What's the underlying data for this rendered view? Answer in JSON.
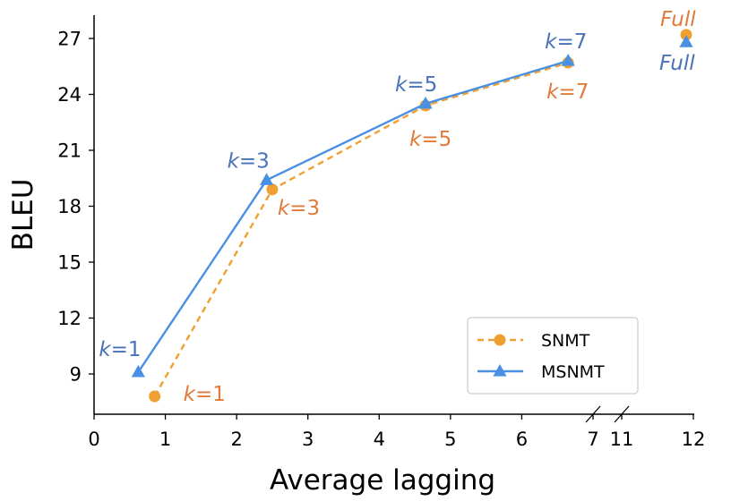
{
  "chart_data": {
    "type": "line",
    "title": "",
    "xlabel": "Average lagging",
    "ylabel": "BLEU",
    "xlim": [
      0,
      12
    ],
    "ylim": [
      7.8,
      28.5
    ],
    "axis_break": {
      "from": 7,
      "to": 11
    },
    "x_ticks": [
      0,
      1,
      2,
      3,
      4,
      5,
      6,
      7,
      11,
      12
    ],
    "x_tick_labels": [
      "0",
      "1",
      "2",
      "3",
      "4",
      "5",
      "6",
      "7",
      "11",
      "12"
    ],
    "y_ticks": [
      9,
      12,
      15,
      18,
      21,
      24,
      27
    ],
    "y_tick_labels": [
      "9",
      "12",
      "15",
      "18",
      "21",
      "24",
      "27"
    ],
    "grid": false,
    "legend_position": "lower-right",
    "series": [
      {
        "name": "SNMT",
        "color": "#f0a030",
        "annotation_color": "#e07b39",
        "marker": "circle",
        "line_style": "dashed",
        "points": [
          {
            "x": 0.85,
            "y": 7.8,
            "label": "k=1"
          },
          {
            "x": 2.5,
            "y": 18.9,
            "label": "k=3"
          },
          {
            "x": 4.65,
            "y": 23.4,
            "label": "k=5"
          },
          {
            "x": 6.65,
            "y": 25.7,
            "label": "k=7"
          }
        ],
        "full": {
          "x": 11.9,
          "y": 27.2,
          "label": "Full"
        }
      },
      {
        "name": "MSNMT",
        "color": "#4a90e2",
        "annotation_color": "#4a72b8",
        "marker": "triangle",
        "line_style": "solid",
        "points": [
          {
            "x": 0.62,
            "y": 9.1,
            "label": "k=1"
          },
          {
            "x": 2.42,
            "y": 19.4,
            "label": "k=3"
          },
          {
            "x": 4.65,
            "y": 23.5,
            "label": "k=5"
          },
          {
            "x": 6.65,
            "y": 25.8,
            "label": "k=7"
          }
        ],
        "full": {
          "x": 11.9,
          "y": 26.8,
          "label": "Full"
        }
      }
    ]
  }
}
